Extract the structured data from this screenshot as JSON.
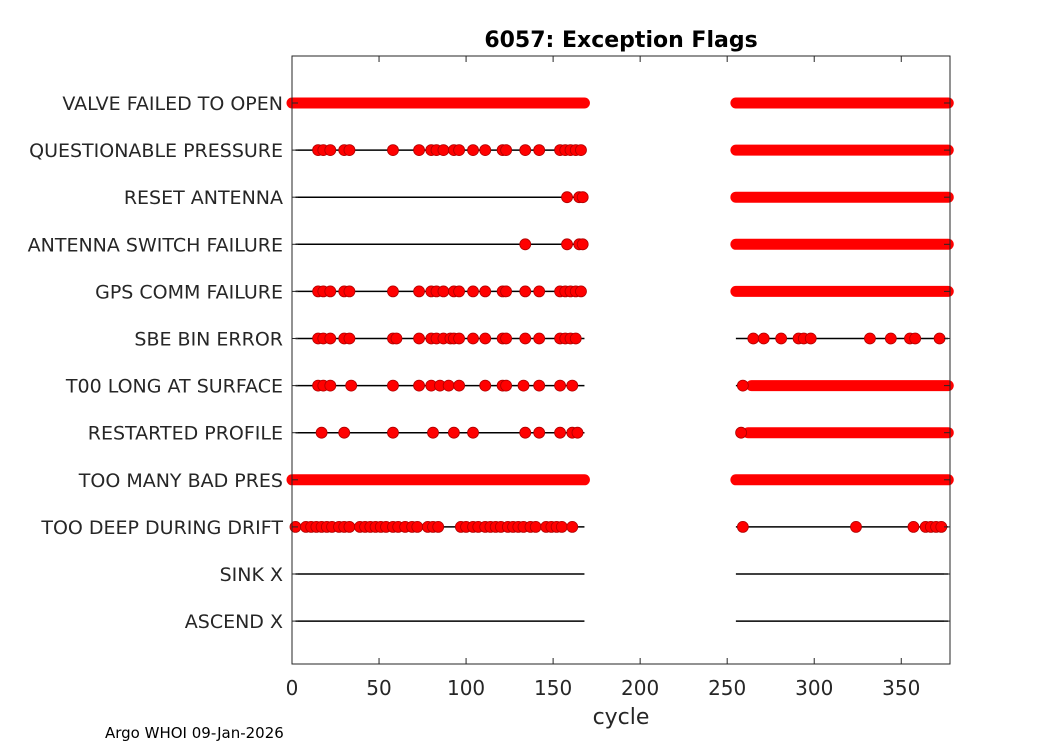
{
  "chart_data": {
    "type": "scatter",
    "title": "6057: Exception Flags",
    "xlabel": "cycle",
    "ylabel": "",
    "xlim": [
      0,
      378
    ],
    "xticks": [
      0,
      50,
      100,
      150,
      200,
      250,
      300,
      350
    ],
    "grid": false,
    "marker_color": "#ff0000",
    "line_color": "#000000",
    "segments": [
      [
        2,
        168
      ],
      [
        255,
        377
      ]
    ],
    "categories": [
      "VALVE FAILED TO OPEN",
      "QUESTIONABLE PRESSURE",
      "RESET ANTENNA",
      "ANTENNA SWITCH FAILURE",
      "GPS COMM FAILURE",
      "SBE BIN ERROR",
      "T00 LONG AT SURFACE",
      "RESTARTED PROFILE",
      "TOO MANY BAD PRES",
      "TOO DEEP DURING DRIFT",
      "SINK X",
      "ASCEND X"
    ],
    "series": [
      {
        "name": "VALVE FAILED TO OPEN",
        "ranges": [
          [
            0,
            168
          ],
          [
            255,
            377
          ]
        ],
        "points": []
      },
      {
        "name": "QUESTIONABLE PRESSURE",
        "ranges": [
          [
            255,
            377
          ]
        ],
        "points": [
          15,
          18,
          22,
          30,
          33,
          58,
          73,
          80,
          83,
          87,
          93,
          96,
          104,
          111,
          121,
          123,
          134,
          142,
          154,
          157,
          160,
          163,
          166
        ]
      },
      {
        "name": "RESET ANTENNA",
        "ranges": [
          [
            255,
            377
          ]
        ],
        "points": [
          158,
          165,
          167
        ]
      },
      {
        "name": "ANTENNA SWITCH FAILURE",
        "ranges": [
          [
            255,
            377
          ]
        ],
        "points": [
          134,
          158,
          165,
          167
        ]
      },
      {
        "name": "GPS COMM FAILURE",
        "ranges": [
          [
            255,
            377
          ]
        ],
        "points": [
          15,
          18,
          22,
          30,
          33,
          58,
          73,
          80,
          83,
          87,
          93,
          96,
          104,
          111,
          121,
          123,
          134,
          142,
          154,
          157,
          160,
          163,
          166
        ]
      },
      {
        "name": "SBE BIN ERROR",
        "ranges": [],
        "points": [
          15,
          18,
          22,
          30,
          33,
          58,
          60,
          73,
          80,
          83,
          87,
          91,
          93,
          96,
          104,
          111,
          121,
          123,
          134,
          142,
          154,
          157,
          160,
          163,
          265,
          271,
          281,
          291,
          294,
          298,
          332,
          344,
          355,
          358,
          372
        ]
      },
      {
        "name": "T00 LONG AT SURFACE",
        "ranges": [
          [
            264,
            377
          ]
        ],
        "points": [
          15,
          18,
          22,
          34,
          58,
          73,
          80,
          85,
          90,
          96,
          111,
          121,
          123,
          133,
          142,
          154,
          161,
          259
        ]
      },
      {
        "name": "RESTARTED PROFILE",
        "ranges": [
          [
            262,
            377
          ]
        ],
        "points": [
          17,
          30,
          58,
          81,
          93,
          104,
          134,
          142,
          154,
          161,
          164,
          258
        ]
      },
      {
        "name": "TOO MANY BAD PRES",
        "ranges": [
          [
            0,
            168
          ],
          [
            255,
            377
          ]
        ],
        "points": []
      },
      {
        "name": "TOO DEEP DURING DRIFT",
        "ranges": [],
        "points": [
          2,
          8,
          11,
          14,
          17,
          20,
          23,
          27,
          30,
          33,
          39,
          42,
          45,
          48,
          51,
          54,
          58,
          61,
          65,
          69,
          72,
          78,
          81,
          84,
          97,
          100,
          104,
          107,
          111,
          114,
          117,
          120,
          124,
          127,
          130,
          133,
          137,
          140,
          146,
          149,
          152,
          155,
          161,
          259,
          324,
          357,
          364,
          367,
          370,
          373
        ]
      },
      {
        "name": "SINK X",
        "ranges": [],
        "points": []
      },
      {
        "name": "ASCEND X",
        "ranges": [],
        "points": []
      }
    ]
  },
  "footer": "Argo WHOI 09-Jan-2026"
}
